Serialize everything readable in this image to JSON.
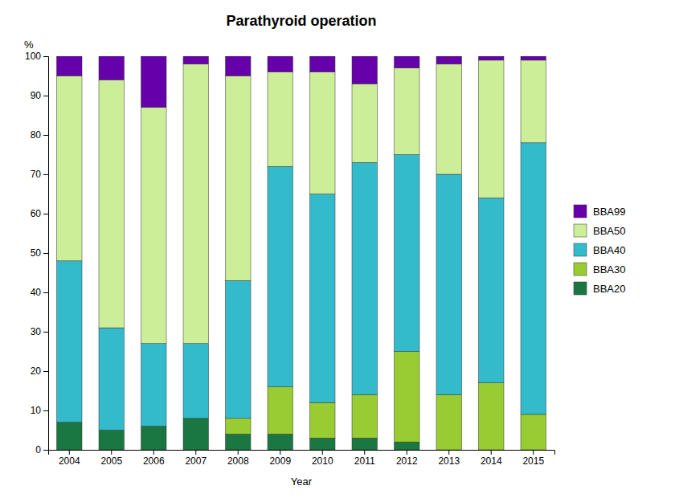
{
  "chart_data": {
    "type": "bar",
    "stacked": true,
    "title": "Parathyroid operation",
    "xlabel": "Year",
    "ylabel": "%",
    "categories": [
      "2004",
      "2005",
      "2006",
      "2007",
      "2008",
      "2009",
      "2010",
      "2011",
      "2012",
      "2013",
      "2014",
      "2015"
    ],
    "series": [
      {
        "name": "BBA20",
        "color": "#1b7742",
        "values": [
          7,
          5,
          6,
          8,
          4,
          4,
          3,
          3,
          2,
          0,
          0,
          0
        ]
      },
      {
        "name": "BBA30",
        "color": "#99cc33",
        "values": [
          0,
          0,
          0,
          0,
          4,
          12,
          9,
          11,
          23,
          14,
          17,
          9
        ]
      },
      {
        "name": "BBA40",
        "color": "#33bbcc",
        "values": [
          41,
          26,
          21,
          19,
          35,
          56,
          53,
          59,
          50,
          56,
          47,
          69
        ]
      },
      {
        "name": "BBA50",
        "color": "#ccee99",
        "values": [
          47,
          63,
          60,
          71,
          52,
          24,
          31,
          20,
          22,
          28,
          35,
          21
        ]
      },
      {
        "name": "BBA99",
        "color": "#6600aa",
        "values": [
          5,
          6,
          13,
          2,
          5,
          4,
          4,
          7,
          3,
          2,
          1,
          1
        ]
      }
    ],
    "ylim": [
      0,
      100
    ],
    "yticks": [
      0,
      10,
      20,
      30,
      40,
      50,
      60,
      70,
      80,
      90,
      100
    ],
    "grid": false,
    "legend": "right"
  }
}
